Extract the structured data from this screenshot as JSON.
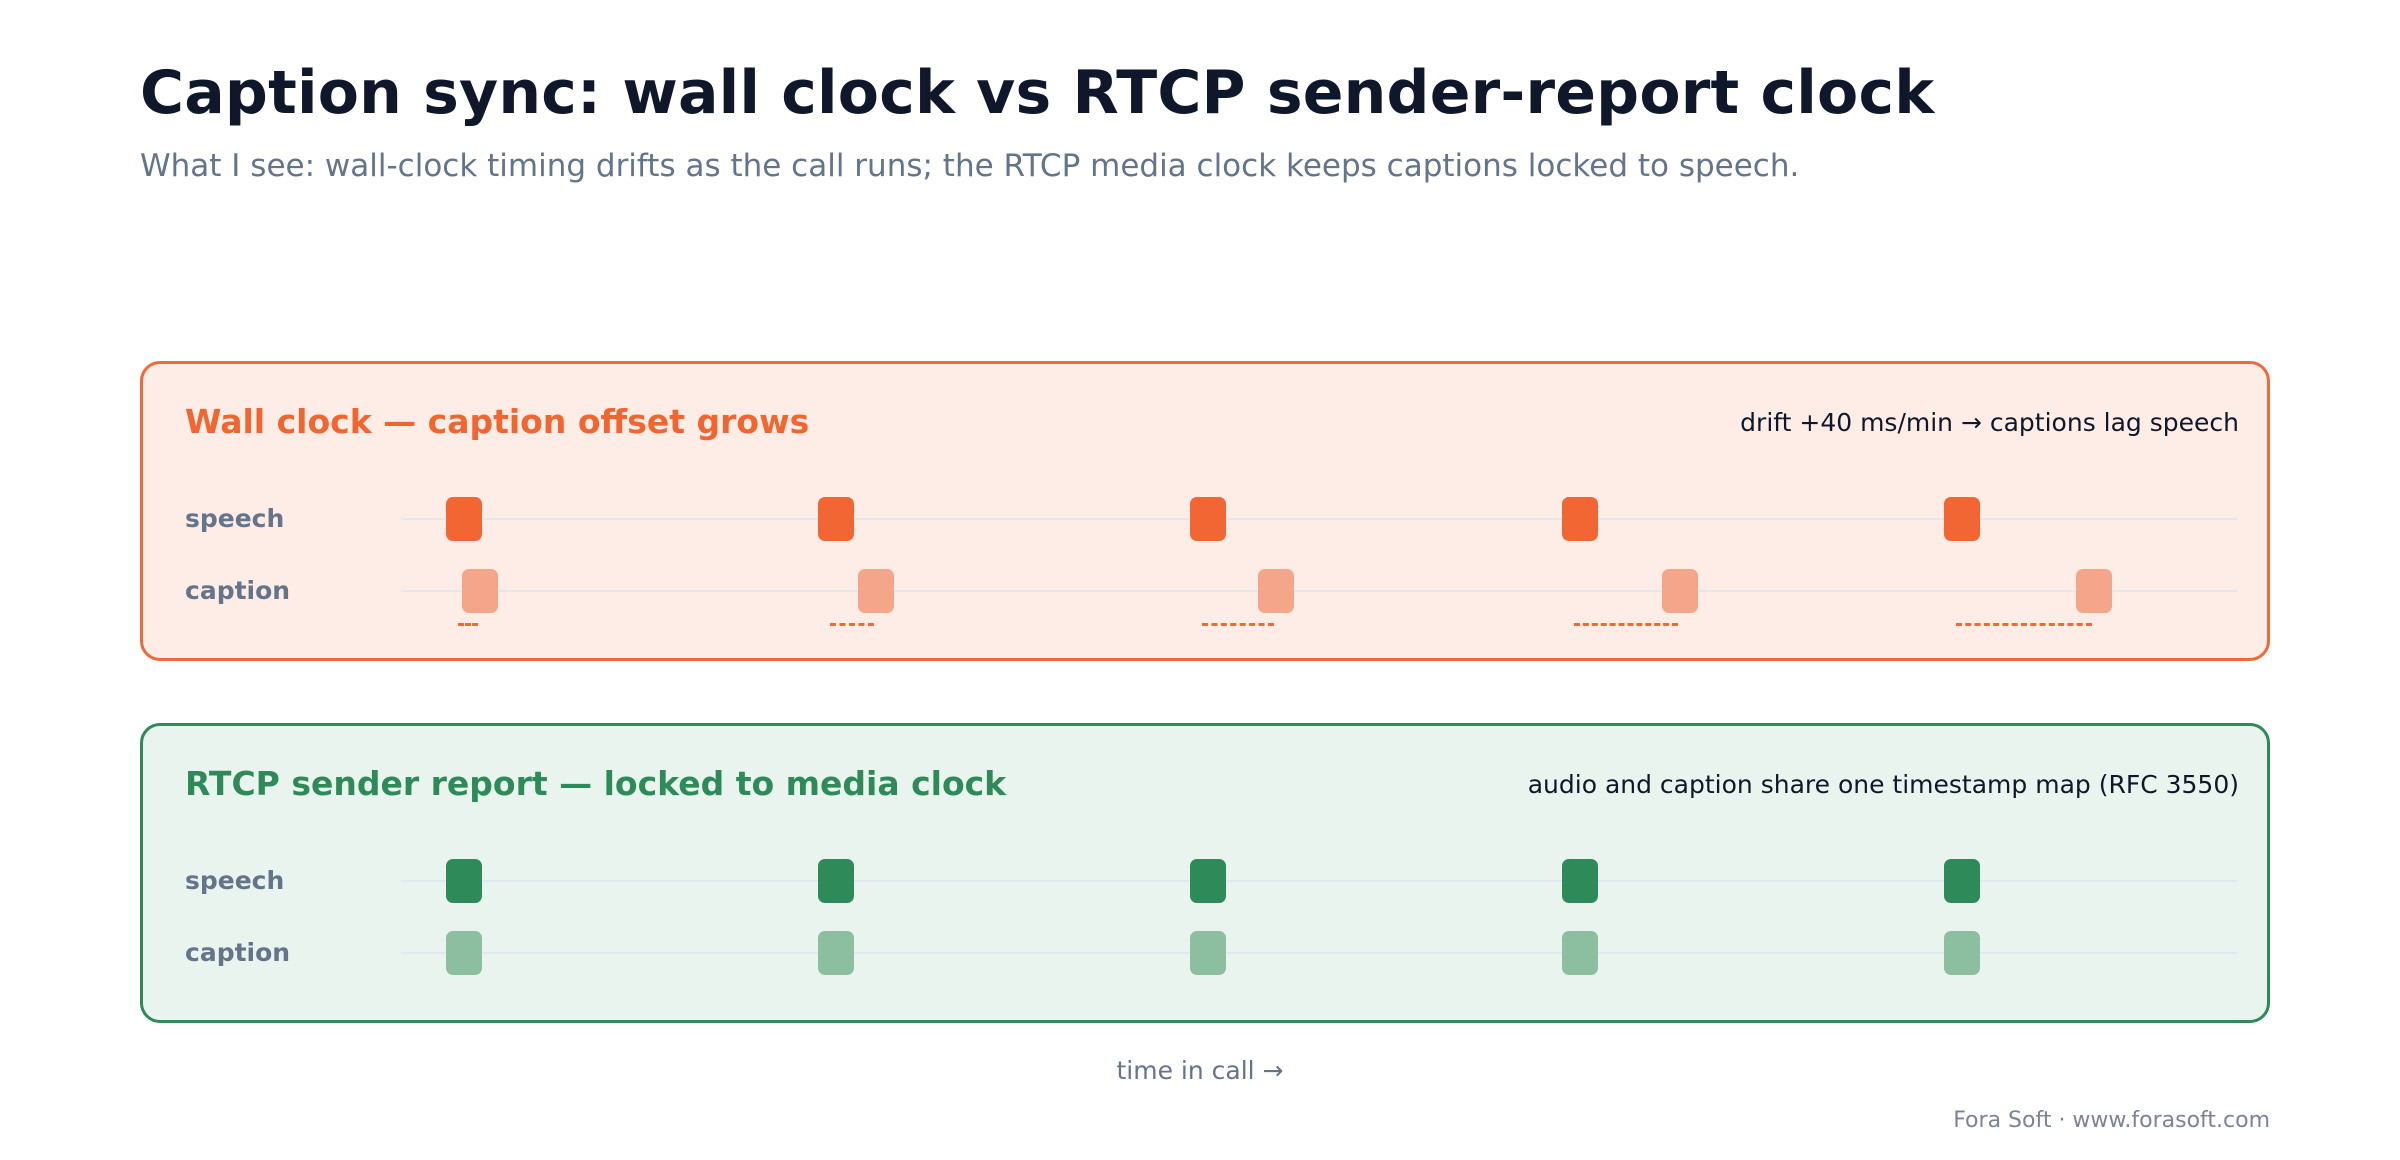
{
  "title": "Caption sync: wall clock vs RTCP sender-report clock",
  "subtitle": "What I see: wall-clock timing drifts as the call runs; the RTCP media clock keeps captions locked to speech.",
  "panels": {
    "wall": {
      "title": "Wall clock — caption offset grows",
      "note": "drift +40 ms/min → captions lag speech",
      "speech_label": "speech",
      "caption_label": "caption",
      "speech_color": "#f26633",
      "caption_color": "#f5a68a",
      "offset_color": "#ee6a3a"
    },
    "rtcp": {
      "title": "RTCP sender report — locked to media clock",
      "note": "audio and caption share one timestamp map (RFC 3550)",
      "speech_label": "speech",
      "caption_label": "caption",
      "speech_color": "#2e8a58",
      "caption_color": "#8cbf9f"
    }
  },
  "axis_label": "time in call →",
  "footer": "Fora Soft · www.forasoft.com"
}
